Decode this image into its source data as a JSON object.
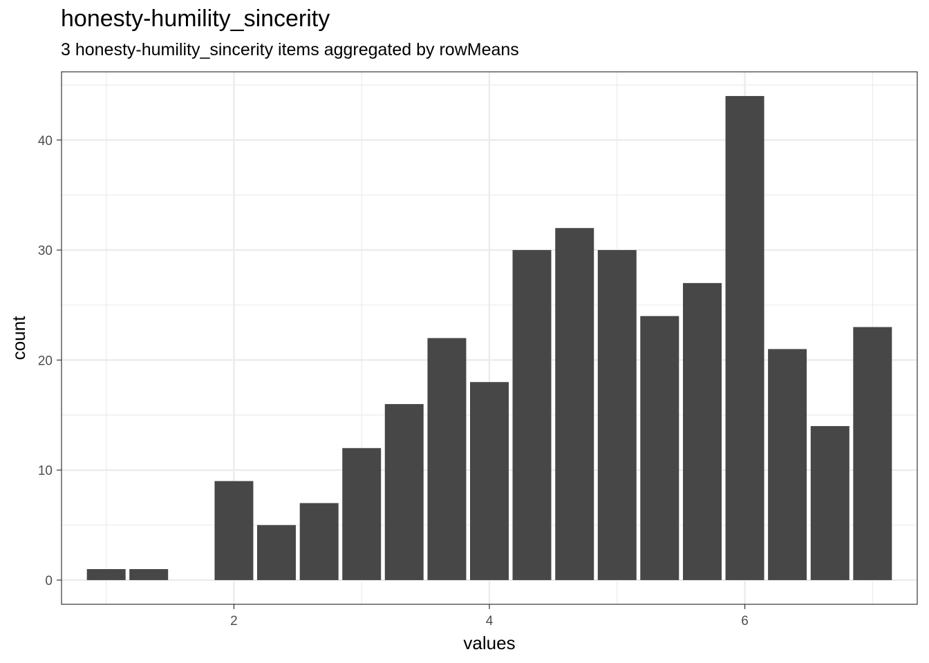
{
  "chart_data": {
    "type": "bar",
    "title": "honesty-humility_sincerity",
    "subtitle": "3 honesty-humility_sincerity items aggregated by rowMeans",
    "xlabel": "values",
    "ylabel": "count",
    "x": [
      1.0,
      1.333,
      1.667,
      2.0,
      2.333,
      2.667,
      3.0,
      3.333,
      3.667,
      4.0,
      4.333,
      4.667,
      5.0,
      5.333,
      5.667,
      6.0,
      6.333,
      6.667,
      7.0
    ],
    "values": [
      1,
      1,
      0,
      9,
      5,
      7,
      12,
      16,
      22,
      18,
      30,
      32,
      30,
      24,
      27,
      44,
      21,
      14,
      23
    ],
    "xlim": [
      0.65,
      7.35
    ],
    "ylim": [
      -2.2,
      46.2
    ],
    "x_ticks": [
      2,
      4,
      6
    ],
    "y_ticks": [
      0,
      10,
      20,
      30,
      40
    ],
    "grid": true,
    "bar_color": "#474747",
    "grid_color": "#ebebeb",
    "panel_border_color": "#333333"
  }
}
